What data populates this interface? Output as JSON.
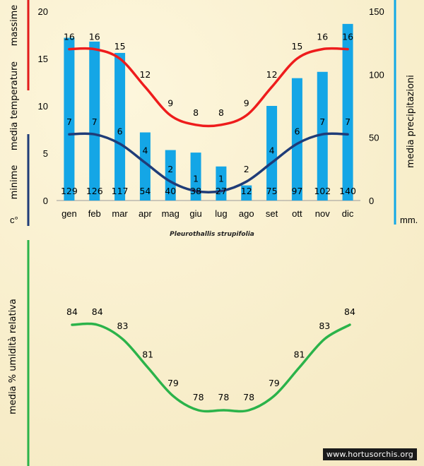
{
  "chart_data": [
    {
      "type": "bar+line",
      "title": "Pleurothallis strupifolia",
      "categories": [
        "gen",
        "feb",
        "mar",
        "apr",
        "mag",
        "giu",
        "lug",
        "ago",
        "set",
        "ott",
        "nov",
        "dic"
      ],
      "y_left": {
        "ticks": [
          "0",
          "5",
          "10",
          "15",
          "20"
        ],
        "ylim": [
          0,
          20
        ],
        "unit": "c°",
        "label_parts": {
          "top": "massime",
          "middle": "media  temperature",
          "bottom": "minime"
        }
      },
      "y_right": {
        "ticks": [
          "0",
          "50",
          "100",
          "150"
        ],
        "ylim": [
          0,
          150
        ],
        "unit": "mm.",
        "label": "media  precipitazioni"
      },
      "series": [
        {
          "name": "massime",
          "kind": "line",
          "axis": "left",
          "color": "#ee1c1c",
          "values": [
            16,
            16,
            15,
            12,
            9,
            8,
            8,
            9,
            12,
            15,
            16,
            16
          ]
        },
        {
          "name": "minime",
          "kind": "line",
          "axis": "left",
          "color": "#1f3c78",
          "values": [
            7,
            7,
            6,
            4,
            2,
            1,
            1,
            2,
            4,
            6,
            7,
            7
          ]
        },
        {
          "name": "precipitazioni",
          "kind": "bar",
          "axis": "right",
          "color": "#14a6e6",
          "values": [
            129,
            126,
            117,
            54,
            40,
            38,
            27,
            12,
            75,
            97,
            102,
            140
          ]
        }
      ]
    },
    {
      "type": "line",
      "categories": [
        "gen",
        "feb",
        "mar",
        "apr",
        "mag",
        "giu",
        "lug",
        "ago",
        "set",
        "ott",
        "nov",
        "dic"
      ],
      "ylabel": "media % umidità relativa",
      "series": [
        {
          "name": "umidità relativa",
          "color": "#2bb34a",
          "values": [
            84,
            84,
            83,
            81,
            79,
            78,
            78,
            78,
            79,
            81,
            83,
            84
          ]
        }
      ]
    }
  ],
  "watermark": "www.hortusorchis.org"
}
